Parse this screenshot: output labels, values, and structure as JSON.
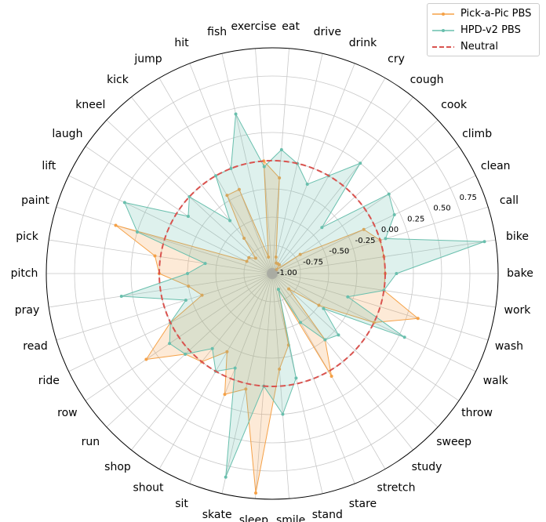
{
  "chart_data": {
    "type": "radar",
    "categories": [
      "bake",
      "bike",
      "call",
      "clean",
      "climb",
      "cook",
      "cough",
      "cry",
      "drink",
      "drive",
      "eat",
      "exercise",
      "fish",
      "hit",
      "jump",
      "kick",
      "kneel",
      "laugh",
      "lift",
      "paint",
      "pick",
      "pitch",
      "pray",
      "read",
      "ride",
      "row",
      "run",
      "shop",
      "shout",
      "sit",
      "skate",
      "sleep",
      "smile",
      "stand",
      "stare",
      "stretch",
      "study",
      "sweep",
      "throw",
      "walk",
      "wash",
      "work"
    ],
    "rlim": [
      -1.0,
      1.0
    ],
    "rticks": [
      -1.0,
      -0.75,
      -0.5,
      -0.25,
      0.0,
      0.25,
      0.5,
      0.75
    ],
    "rtick_labels": [
      "-1.00",
      "-0.75",
      "-0.50",
      "-0.25",
      "0.00",
      "0.25",
      "0.50",
      "0.75"
    ],
    "grid": true,
    "legend_position": "top-right",
    "series": [
      {
        "name": "Pick-a-Pic PBS",
        "color": "#f5a147",
        "values": [
          0.0,
          0.0,
          0.0,
          -0.1,
          -0.7,
          -0.95,
          -0.9,
          -0.9,
          -0.9,
          -0.85,
          -0.15,
          0.0,
          -0.85,
          -0.2,
          -0.2,
          -0.6,
          -0.8,
          -0.75,
          -0.75,
          0.45,
          0.05,
          0.0,
          -0.25,
          -0.35,
          0.0,
          0.35,
          0.05,
          0.0,
          -0.2,
          0.15,
          0.05,
          0.95,
          -0.15,
          -0.35,
          -0.85,
          0.05,
          -0.25,
          -0.8,
          -0.5,
          0.0,
          0.35,
          0.0
        ]
      },
      {
        "name": "HPD-v2 PBS",
        "color": "#69bfad",
        "values": [
          0.1,
          0.9,
          0.05,
          0.2,
          0.25,
          -0.4,
          0.25,
          0.0,
          -0.15,
          0.0,
          0.1,
          -0.05,
          0.45,
          0.0,
          0.0,
          -0.4,
          0.0,
          -0.1,
          0.45,
          0.25,
          -0.4,
          -0.25,
          0.35,
          -0.2,
          0.0,
          0.1,
          0.05,
          -0.15,
          0.0,
          -0.1,
          0.85,
          0.0,
          0.25,
          -0.05,
          -0.85,
          -0.5,
          -0.25,
          -0.2,
          -0.45,
          0.3,
          -0.3,
          0.0
        ]
      },
      {
        "name": "Neutral",
        "color": "#d9534f",
        "style": "dashed",
        "constant": 0.0
      }
    ]
  },
  "legend": {
    "items": [
      {
        "label": "Pick-a-Pic PBS",
        "color": "#f5a147"
      },
      {
        "label": "HPD-v2 PBS",
        "color": "#69bfad"
      },
      {
        "label": "Neutral",
        "color": "#d9534f"
      }
    ]
  }
}
